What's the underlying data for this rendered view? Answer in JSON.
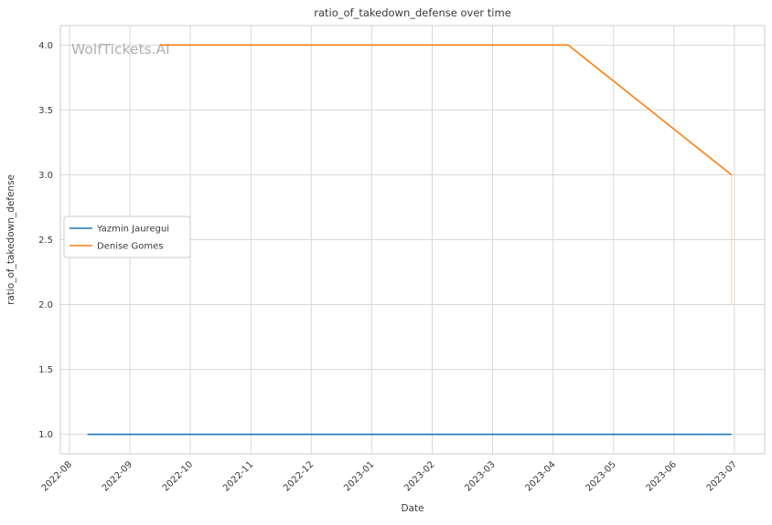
{
  "chart_data": {
    "type": "line",
    "title": "ratio_of_takedown_defense over time",
    "xlabel": "Date",
    "ylabel": "ratio_of_takedown_defense",
    "watermark": "WolfTickets.AI",
    "x_tick_positions": [
      0,
      1,
      2,
      3,
      4,
      5,
      6,
      7,
      8,
      9,
      10,
      11
    ],
    "x_tick_labels": [
      "2022-08",
      "2022-09",
      "2022-10",
      "2022-11",
      "2022-12",
      "2023-01",
      "2023-02",
      "2023-03",
      "2023-04",
      "2023-05",
      "2023-06",
      "2023-07"
    ],
    "y_ticks": [
      1.0,
      1.5,
      2.0,
      2.5,
      3.0,
      3.5,
      4.0
    ],
    "y_tick_labels": [
      "1.0",
      "1.5",
      "2.0",
      "2.5",
      "3.0",
      "3.5",
      "4.0"
    ],
    "xlim": [
      -0.15,
      11.5
    ],
    "ylim": [
      0.85,
      4.15
    ],
    "grid": true,
    "colors": {
      "blue": "#1f77b4",
      "orange": "#ff7f0e",
      "grid": "#d8d8d8",
      "spine": "#cccccc",
      "text": "#3a3a3a",
      "watermark": "#b0b0b0"
    },
    "legend": {
      "position": "center-left",
      "entries": [
        {
          "label": "Yazmin Jauregui",
          "color": "#1f77b4"
        },
        {
          "label": "Denise Gomes",
          "color": "#ff7f0e"
        }
      ]
    },
    "series": [
      {
        "name": "Yazmin Jauregui",
        "slug": "yazmin-jauregui",
        "color": "#1f77b4",
        "points": [
          [
            0.3,
            1.0
          ],
          [
            10.95,
            1.0
          ]
        ]
      },
      {
        "name": "Denise Gomes",
        "slug": "denise-gomes",
        "color": "#ff7f0e",
        "points": [
          [
            1.5,
            4.0
          ],
          [
            8.25,
            4.0
          ],
          [
            10.95,
            3.0
          ]
        ]
      }
    ],
    "annotations": [
      {
        "type": "vline",
        "x": 10.95,
        "y1": 3.0,
        "y2": 2.0,
        "color": "#ff7f0e",
        "opacity": 0.3
      }
    ]
  }
}
